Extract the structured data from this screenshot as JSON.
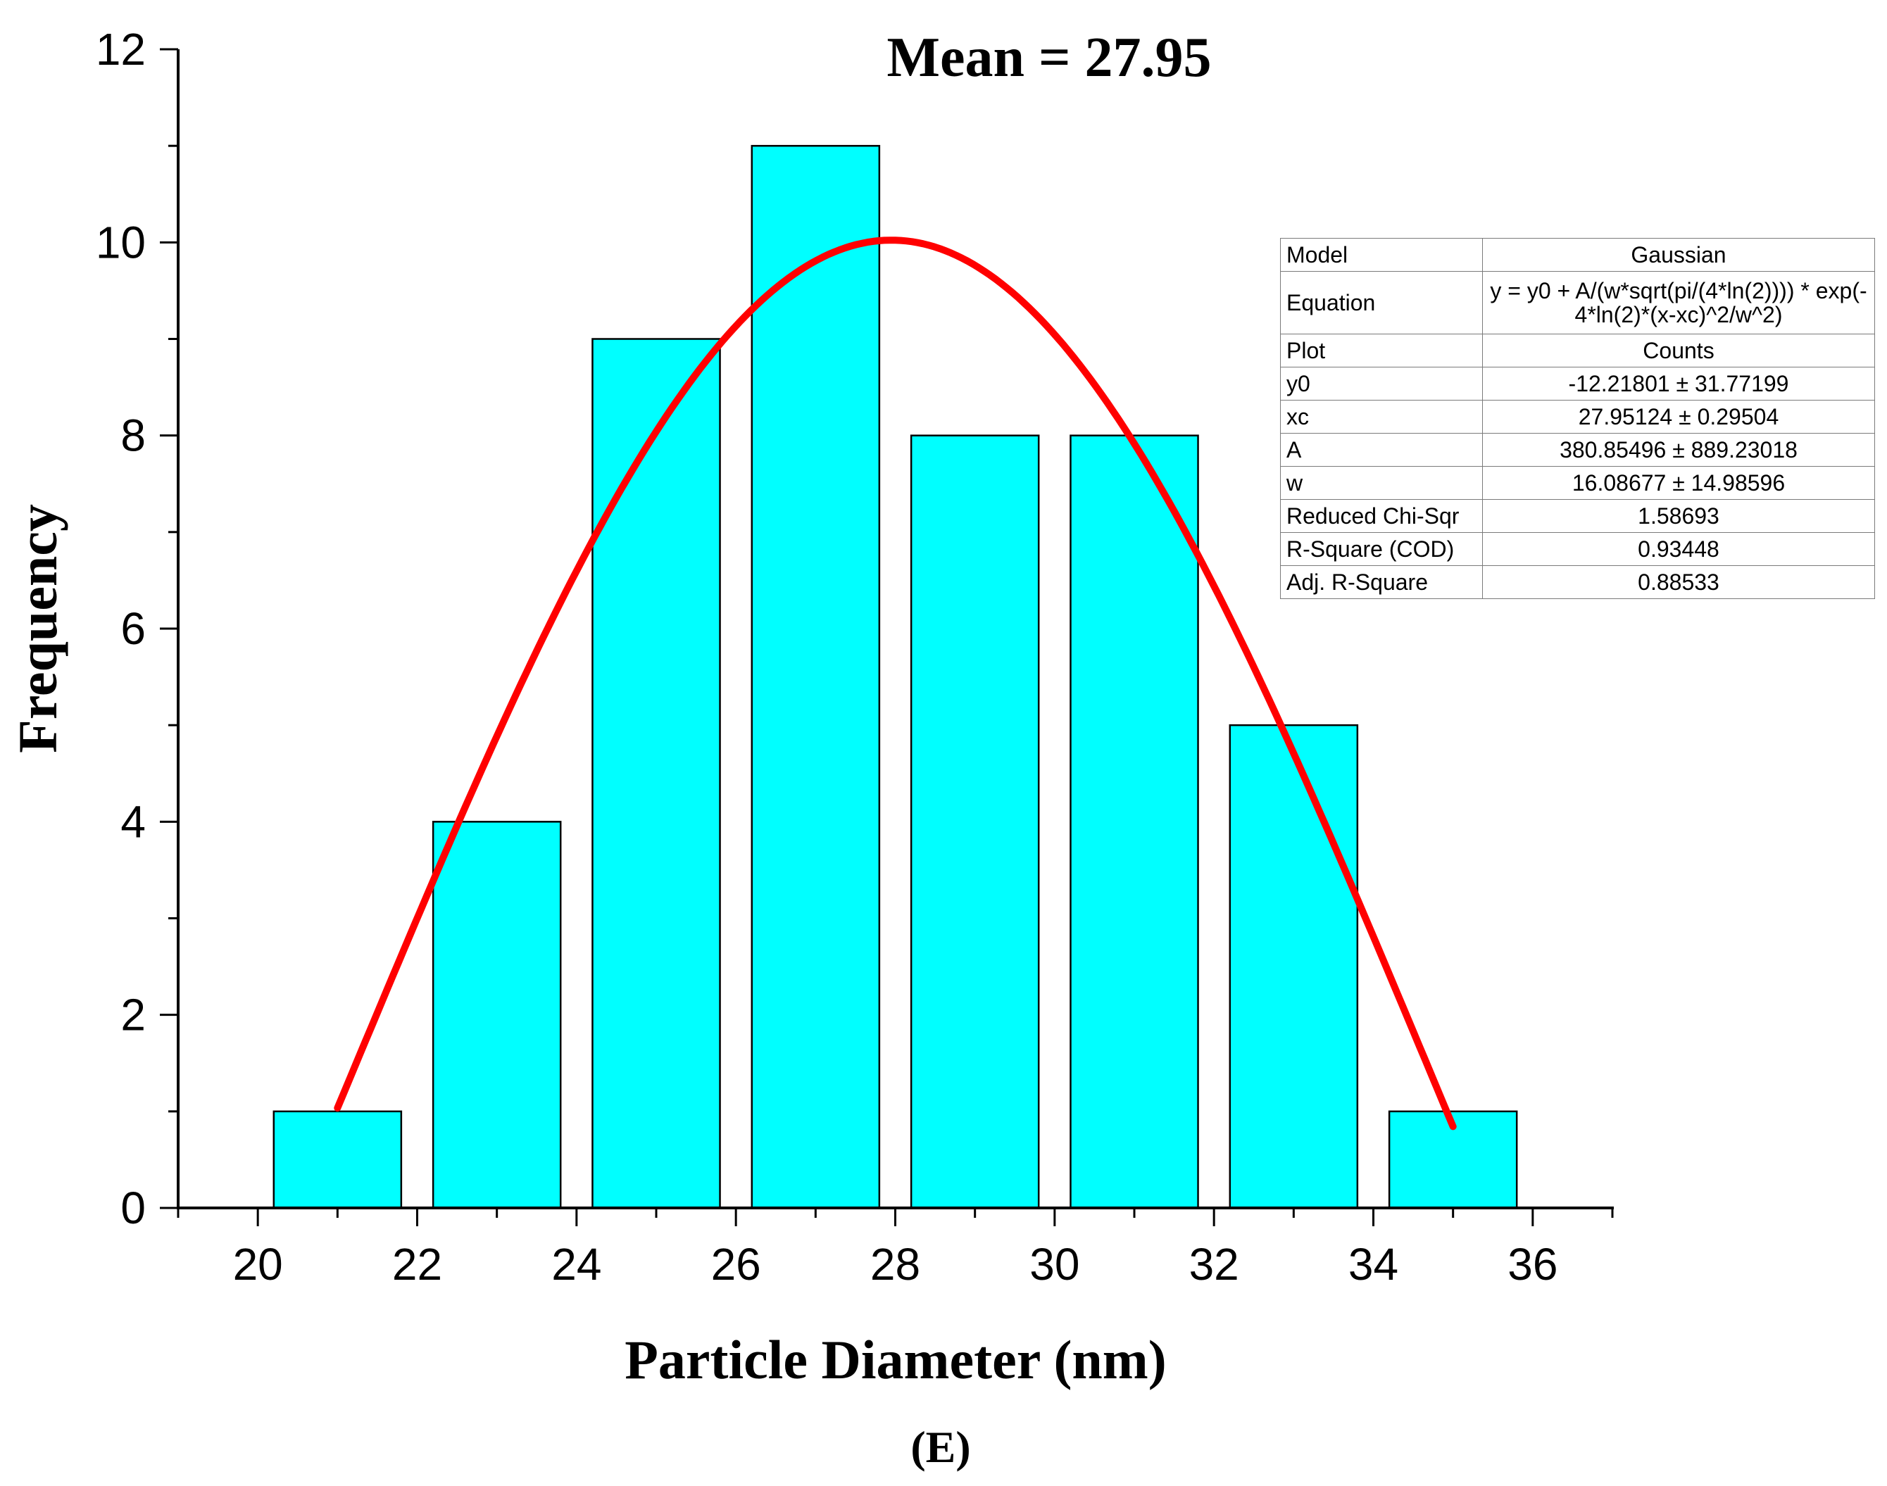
{
  "chart_data": {
    "type": "bar",
    "title": "Mean = 27.95",
    "xlabel": "Particle Diameter (nm)",
    "ylabel": "Frequency",
    "caption": "(E)",
    "xlim": [
      19,
      37
    ],
    "ylim": [
      0,
      12
    ],
    "x_ticks": [
      "20",
      "22",
      "24",
      "26",
      "28",
      "30",
      "32",
      "34",
      "36"
    ],
    "y_ticks": [
      "0",
      "2",
      "4",
      "6",
      "8",
      "10",
      "12"
    ],
    "bin_centers": [
      21,
      23,
      25,
      27,
      29,
      31,
      33,
      35
    ],
    "bin_width": 1.6,
    "values": [
      1,
      4,
      9,
      11,
      8,
      8,
      5,
      1
    ],
    "bar_color": "#00FFFF",
    "fit": {
      "name": "Gaussian",
      "color": "#FF0000",
      "x_range": [
        21,
        35
      ],
      "y0": -12.21801,
      "xc": 27.95124,
      "A": 380.85496,
      "w": 16.08677
    }
  },
  "fit_table": [
    {
      "key": "Model",
      "value": "Gaussian"
    },
    {
      "key": "Equation",
      "value": "y = y0 + A/(w*sqrt(pi/(4*ln(2)))) * exp(-4*ln(2)*(x-xc)^2/w^2)"
    },
    {
      "key": "Plot",
      "value": "Counts"
    },
    {
      "key": "y0",
      "value": "-12.21801 ± 31.77199"
    },
    {
      "key": "xc",
      "value": "27.95124 ± 0.29504"
    },
    {
      "key": "A",
      "value": "380.85496 ± 889.23018"
    },
    {
      "key": "w",
      "value": "16.08677 ± 14.98596"
    },
    {
      "key": "Reduced Chi-Sqr",
      "value": "1.58693"
    },
    {
      "key": "R-Square (COD)",
      "value": "0.93448"
    },
    {
      "key": "Adj. R-Square",
      "value": "0.88533"
    }
  ]
}
